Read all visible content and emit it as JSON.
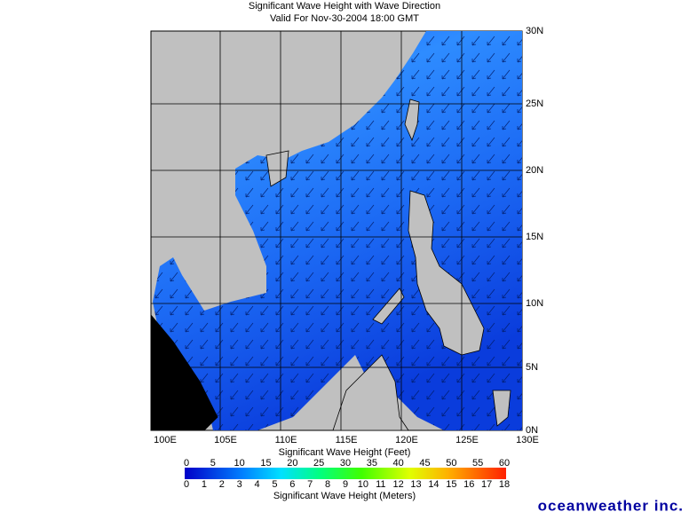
{
  "header": {
    "title": "Significant Wave Height with Wave Direction",
    "subtitle": "Valid For Nov-30-2004 18:00 GMT"
  },
  "map": {
    "lon_labels": [
      "100E",
      "105E",
      "110E",
      "115E",
      "120E",
      "125E",
      "130E"
    ],
    "lat_labels": [
      "30N",
      "25N",
      "20N",
      "15N",
      "10N",
      "5N",
      "0N"
    ]
  },
  "colorbar": {
    "feet_title": "Significant Wave Height (Feet)",
    "feet_ticks": [
      0,
      5,
      10,
      15,
      20,
      25,
      30,
      35,
      40,
      45,
      50,
      55,
      60
    ],
    "meters_title": "Significant Wave Height (Meters)",
    "meters_ticks": [
      0,
      1,
      2,
      3,
      4,
      5,
      6,
      7,
      8,
      9,
      10,
      11,
      12,
      13,
      14,
      15,
      16,
      17,
      18
    ]
  },
  "footer": {
    "logo": "oceanweather inc."
  }
}
